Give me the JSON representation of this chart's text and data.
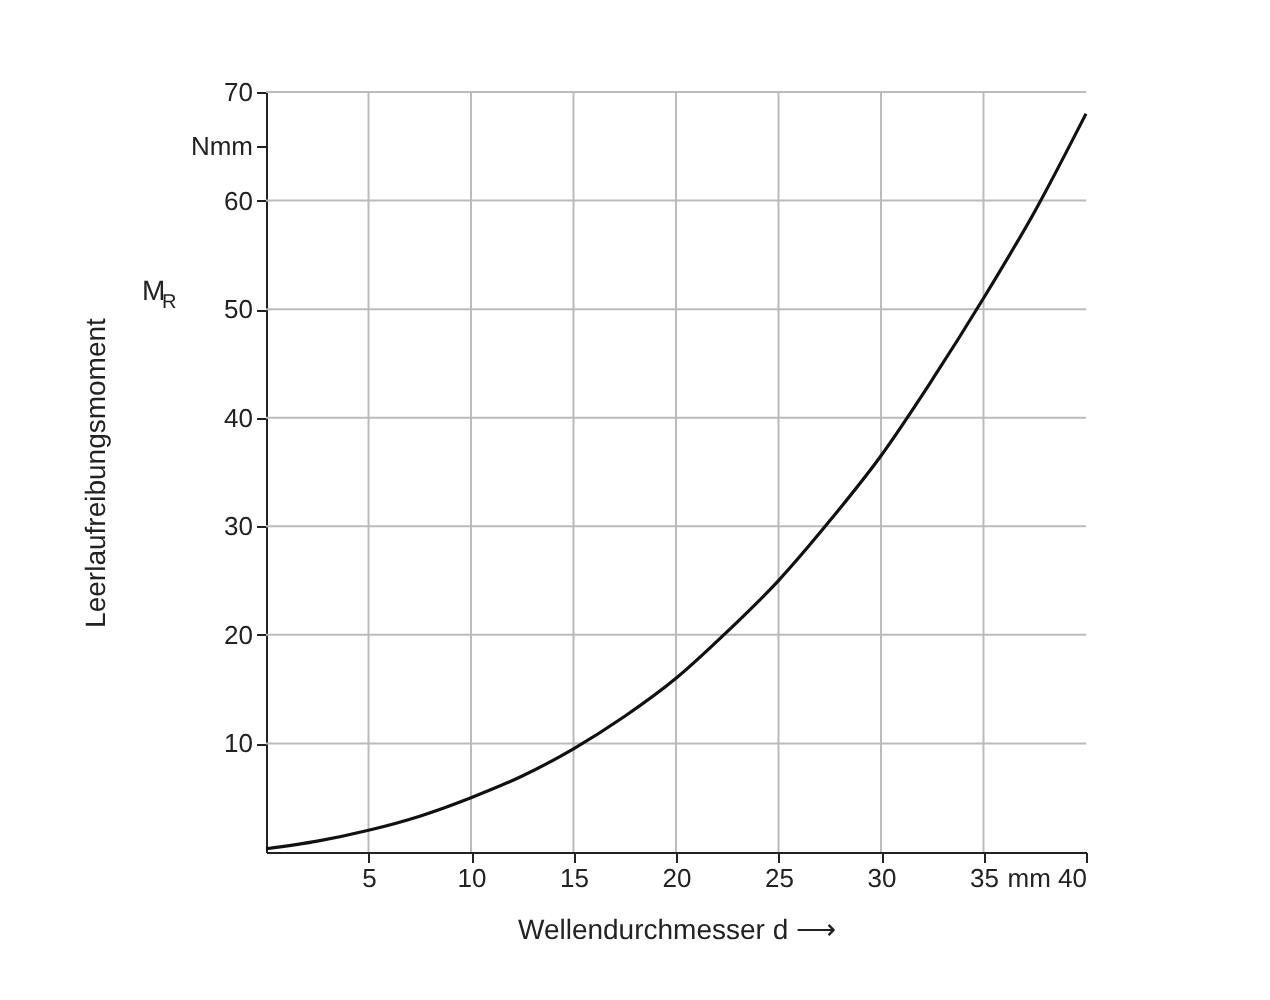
{
  "chart_data": {
    "type": "line",
    "xlabel": "Wellendurchmesser d  ⟶",
    "ylabel": "Leerlaufreibungsmoment",
    "annotations": [
      "M$_{R}$"
    ],
    "x": [
      0,
      2.5,
      5,
      7.5,
      10,
      12.5,
      15,
      17.5,
      20,
      22.5,
      25,
      27.5,
      30,
      32.5,
      35,
      37.5,
      40
    ],
    "series": [
      {
        "color": "#111111",
        "values": [
          0.3,
          1,
          2,
          3.3,
          5,
          7,
          9.5,
          12.5,
          16,
          20.3,
          25,
          30.5,
          36.5,
          43.5,
          51,
          59,
          68
        ]
      }
    ],
    "xlim": [
      0,
      40
    ],
    "xticks": [
      5,
      10,
      15,
      20,
      25,
      30,
      35,
      {
        "value": 40,
        "label": "mm 40"
      }
    ],
    "ylim": [
      0,
      70
    ],
    "yticks": [
      10,
      20,
      30,
      40,
      50,
      60,
      {
        "value": 65,
        "label": "Nmm"
      },
      70
    ],
    "grid": true,
    "marker": "none",
    "line_style": "solid"
  }
}
